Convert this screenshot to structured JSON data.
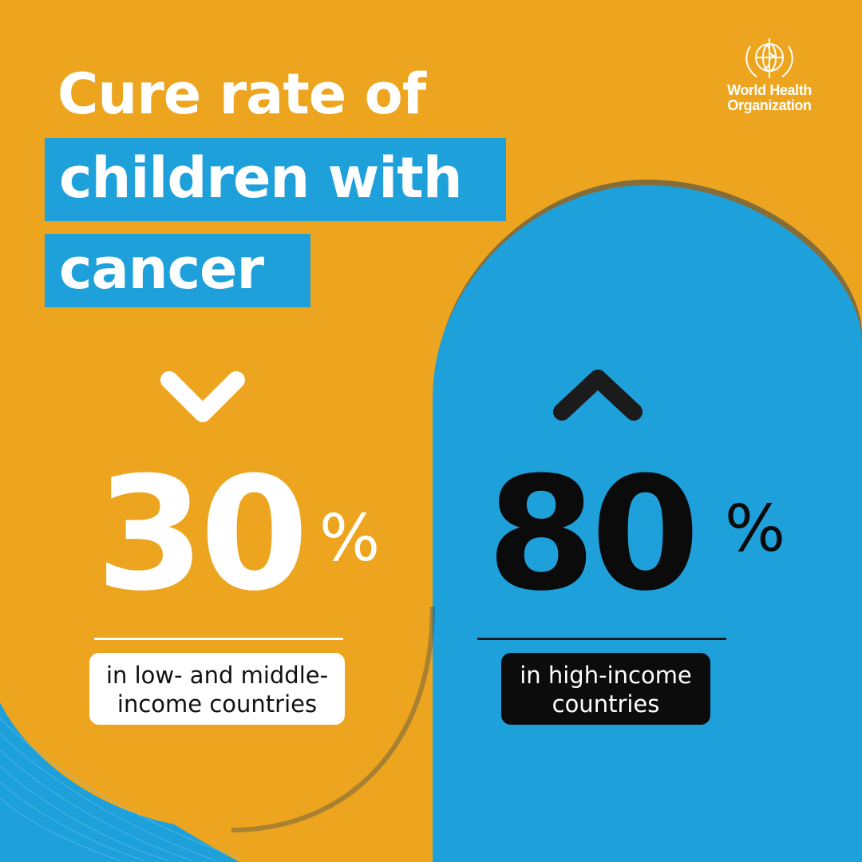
{
  "colors": {
    "orange": "#EDA51F",
    "blue": "#1EA0DB",
    "white": "#FFFFFF",
    "black": "#0B0B0B"
  },
  "title": {
    "line1": "Cure rate of",
    "line2": "children with",
    "line3": "cancer"
  },
  "logo": {
    "line1": "World Health",
    "line2": "Organization"
  },
  "left_stat": {
    "value": "30",
    "unit": "%",
    "caption_line1": "in low- and middle-",
    "caption_line2": "income countries",
    "arrow": "chevron-down-icon"
  },
  "right_stat": {
    "value": "80",
    "unit": "%",
    "caption_line1": "in high-income",
    "caption_line2": "countries",
    "arrow": "chevron-up-icon"
  }
}
